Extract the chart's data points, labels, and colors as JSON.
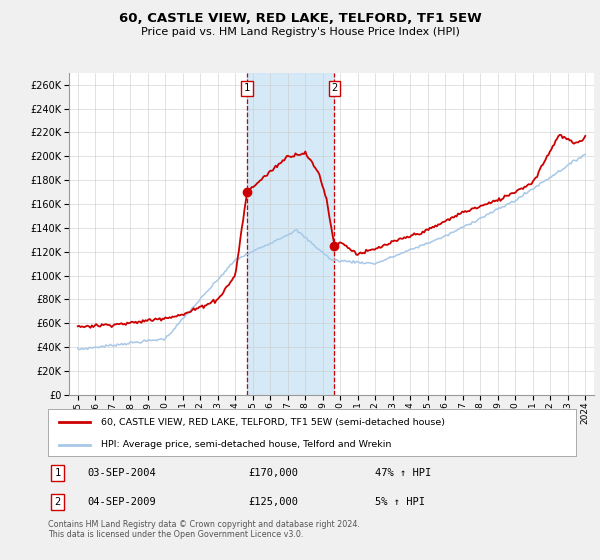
{
  "title": "60, CASTLE VIEW, RED LAKE, TELFORD, TF1 5EW",
  "subtitle": "Price paid vs. HM Land Registry's House Price Index (HPI)",
  "hpi_color": "#a8c8e8",
  "price_color": "#cc0000",
  "background_color": "#f0f0f0",
  "plot_bg_color": "#ffffff",
  "grid_color": "#cccccc",
  "sale1_date": 2004.67,
  "sale1_price": 170000,
  "sale2_date": 2009.67,
  "sale2_price": 125000,
  "ylim_max": 270000,
  "ylim_min": 0,
  "xlim_min": 1994.5,
  "xlim_max": 2024.5,
  "legend_line1": "60, CASTLE VIEW, RED LAKE, TELFORD, TF1 5EW (semi-detached house)",
  "legend_line2": "HPI: Average price, semi-detached house, Telford and Wrekin",
  "footer": "Contains HM Land Registry data © Crown copyright and database right 2024.\nThis data is licensed under the Open Government Licence v3.0."
}
